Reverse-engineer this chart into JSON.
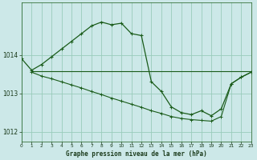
{
  "title": "Graphe pression niveau de la mer (hPa)",
  "background_color": "#cce8e8",
  "line_color": "#1a5c1a",
  "grid_color": "#99ccbb",
  "text_color": "#1a3a1a",
  "line1_x": [
    0,
    1,
    2,
    3,
    4,
    5,
    6,
    7,
    8,
    9,
    10,
    11,
    12,
    13,
    14,
    15,
    16,
    17,
    18,
    19,
    20,
    21,
    22,
    23
  ],
  "line1_y": [
    1013.9,
    1013.6,
    1013.75,
    1013.95,
    1014.15,
    1014.35,
    1014.55,
    1014.75,
    1014.85,
    1014.78,
    1014.82,
    1014.55,
    1014.5,
    1013.3,
    1013.05,
    1012.65,
    1012.5,
    1012.45,
    1012.55,
    1012.42,
    1012.6,
    1013.25,
    1013.42,
    1013.55
  ],
  "line2_x": [
    1,
    2,
    3,
    4,
    5,
    6,
    7,
    8,
    9,
    10,
    11,
    12,
    13,
    14,
    15,
    16,
    17,
    18,
    19,
    20,
    21,
    22,
    23
  ],
  "line2_y": [
    1013.57,
    1013.57,
    1013.57,
    1013.57,
    1013.57,
    1013.57,
    1013.57,
    1013.57,
    1013.57,
    1013.57,
    1013.57,
    1013.57,
    1013.57,
    1013.57,
    1013.57,
    1013.57,
    1013.57,
    1013.57,
    1013.57,
    1013.57,
    1013.57,
    1013.57,
    1013.57
  ],
  "line3_x": [
    1,
    2,
    3,
    4,
    5,
    6,
    7,
    8,
    9,
    10,
    11,
    12,
    13,
    14,
    15,
    16,
    17,
    18,
    19,
    20,
    21,
    22,
    23
  ],
  "line3_y": [
    1013.55,
    1013.45,
    1013.38,
    1013.3,
    1013.22,
    1013.14,
    1013.05,
    1012.97,
    1012.88,
    1012.8,
    1012.72,
    1012.64,
    1012.55,
    1012.48,
    1012.4,
    1012.35,
    1012.32,
    1012.3,
    1012.28,
    1012.4,
    1013.25,
    1013.42,
    1013.55
  ],
  "ylim_min": 1011.75,
  "ylim_max": 1015.35,
  "yticks": [
    1012,
    1013,
    1014
  ],
  "xlim_min": 0,
  "xlim_max": 23,
  "xticks": [
    0,
    1,
    2,
    3,
    4,
    5,
    6,
    7,
    8,
    9,
    10,
    11,
    12,
    13,
    14,
    15,
    16,
    17,
    18,
    19,
    20,
    21,
    22,
    23
  ]
}
